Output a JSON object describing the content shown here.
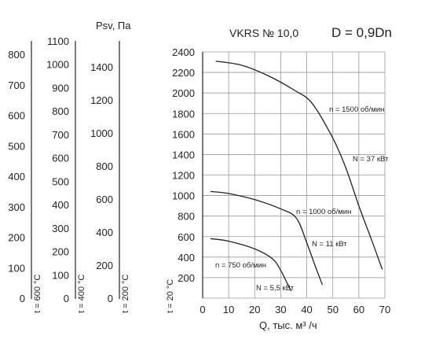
{
  "chart_data": {
    "type": "line",
    "title": "VKRS № 10,0",
    "subtitle": "D = 0,9Dn",
    "xlabel": "Q, тыс. м³ /ч",
    "ylabel": "Psv, Па",
    "xlim": [
      0,
      70
    ],
    "ylim": [
      0,
      2400
    ],
    "grid": true,
    "x_ticks": [
      "0",
      "10",
      "20",
      "30",
      "40",
      "50",
      "60",
      "70"
    ],
    "y_ticks": [
      "200",
      "400",
      "600",
      "800",
      "1000",
      "1200",
      "1400",
      "1600",
      "1800",
      "2000",
      "2200",
      "2400"
    ],
    "extra_axes": [
      {
        "label": "t = 20 °C",
        "ticks": []
      },
      {
        "label": "t = 200 °C",
        "ticks": [
          "0",
          "200",
          "400",
          "600",
          "800",
          "1000",
          "1200",
          "1400"
        ]
      },
      {
        "label": "t = 400 °C",
        "ticks": [
          "0",
          "100",
          "200",
          "300",
          "400",
          "500",
          "600",
          "700",
          "800",
          "900",
          "1000",
          "1100"
        ]
      },
      {
        "label": "t = 600 °C",
        "ticks": [
          "0",
          "100",
          "200",
          "300",
          "400",
          "500",
          "600",
          "700",
          "800"
        ]
      }
    ],
    "series": [
      {
        "name": "n = 1500 об/мин",
        "power": "N = 37 кВт",
        "x": [
          5,
          15,
          25,
          35,
          42,
          50,
          55,
          60,
          65,
          69
        ],
        "y": [
          2310,
          2270,
          2170,
          2030,
          1900,
          1560,
          1270,
          900,
          560,
          280
        ]
      },
      {
        "name": "n = 1000 об/мин",
        "power": "N = 11 кВт",
        "x": [
          3,
          10,
          20,
          30,
          36,
          40,
          43,
          46
        ],
        "y": [
          1040,
          1020,
          960,
          870,
          780,
          540,
          330,
          130
        ]
      },
      {
        "name": "n = 750 об/мин",
        "power": "N = 5,5 кВт",
        "x": [
          3,
          10,
          20,
          27,
          30,
          32,
          34
        ],
        "y": [
          580,
          555,
          480,
          380,
          270,
          170,
          70
        ]
      }
    ]
  }
}
